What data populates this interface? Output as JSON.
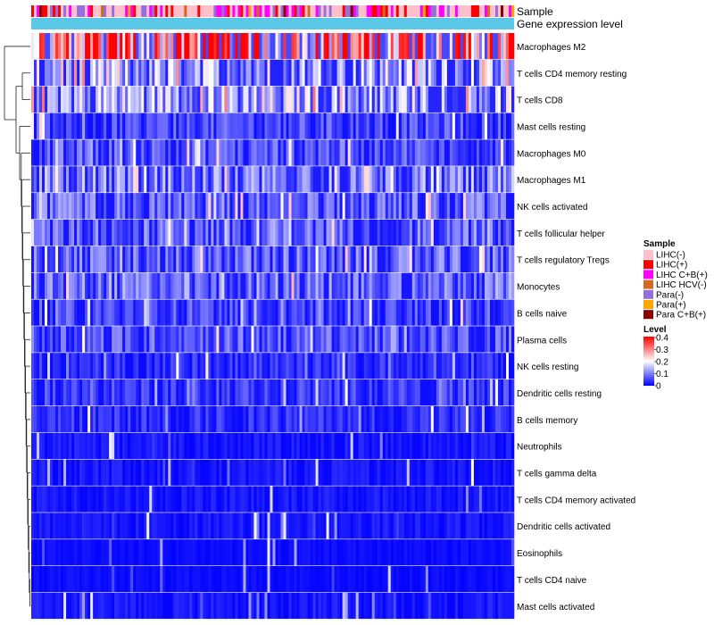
{
  "chart_data": {
    "type": "heatmap",
    "n_samples": 180,
    "annotation_rows": [
      "Sample",
      "Gene expression level"
    ],
    "rows": [
      {
        "name": "Macrophages M2",
        "mean": 0.28
      },
      {
        "name": "T cells CD4 memory resting",
        "mean": 0.13
      },
      {
        "name": "T cells CD8",
        "mean": 0.14
      },
      {
        "name": "Mast cells resting",
        "mean": 0.06
      },
      {
        "name": "Macrophages M0",
        "mean": 0.07
      },
      {
        "name": "Macrophages M1",
        "mean": 0.1
      },
      {
        "name": "NK cells activated",
        "mean": 0.08
      },
      {
        "name": "T cells follicular helper",
        "mean": 0.08
      },
      {
        "name": "T cells regulatory  Tregs",
        "mean": 0.08
      },
      {
        "name": "Monocytes",
        "mean": 0.09
      },
      {
        "name": "B cells naive",
        "mean": 0.06
      },
      {
        "name": "Plasma cells",
        "mean": 0.07
      },
      {
        "name": "NK cells resting",
        "mean": 0.04
      },
      {
        "name": "Dendritic cells resting",
        "mean": 0.05
      },
      {
        "name": "B cells memory",
        "mean": 0.04
      },
      {
        "name": "Neutrophils",
        "mean": 0.02
      },
      {
        "name": "T cells gamma delta",
        "mean": 0.02
      },
      {
        "name": "T cells CD4 memory activated",
        "mean": 0.02
      },
      {
        "name": "Dendritic cells activated",
        "mean": 0.02
      },
      {
        "name": "Eosinophils",
        "mean": 0.01
      },
      {
        "name": "T cells CD4 naive",
        "mean": 0.01
      },
      {
        "name": "Mast cells activated",
        "mean": 0.02
      }
    ],
    "sample_legend": {
      "title": "Sample",
      "entries": [
        {
          "label": "LIHC(-)",
          "color": "#ffc0cb"
        },
        {
          "label": "LIHC(+)",
          "color": "#ff0000"
        },
        {
          "label": "LIHC C+B(+)",
          "color": "#ff00ff"
        },
        {
          "label": "LIHC HCV(-)",
          "color": "#d2691e"
        },
        {
          "label": "Para(-)",
          "color": "#9370db"
        },
        {
          "label": "Para(+)",
          "color": "#ffa500"
        },
        {
          "label": "Para C+B(+)",
          "color": "#8b0000"
        }
      ]
    },
    "level_legend": {
      "title": "Level",
      "range": [
        0,
        0.4
      ],
      "ticks": [
        "0.4",
        "0.3",
        "0.2",
        "0.1",
        "0"
      ],
      "colors": {
        "low": "#0000ff",
        "mid": "#ffffff",
        "high": "#ff0000"
      }
    },
    "gene_expression_color": "#5bc8e8"
  }
}
